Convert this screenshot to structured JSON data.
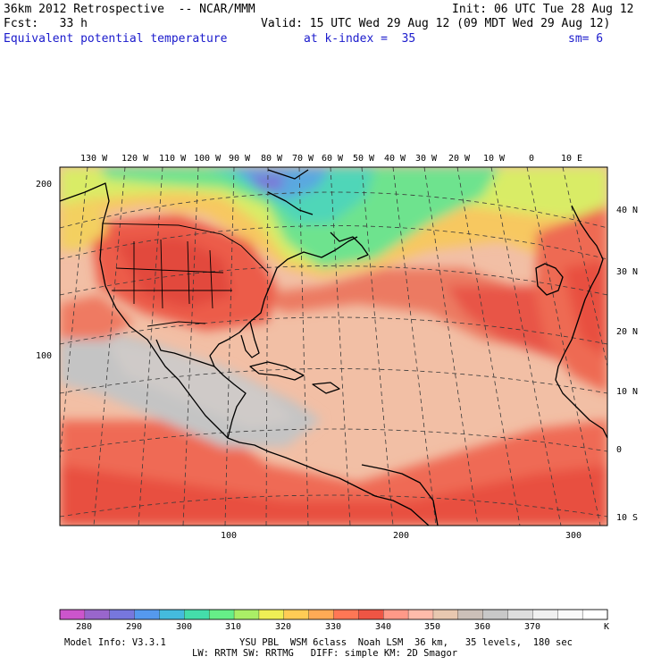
{
  "header": {
    "run": "36km 2012 Retrospective  -- NCAR/MMM",
    "init": "Init: 06 UTC Tue 28 Aug 12",
    "fcst": "Fcst:   33 h",
    "valid": "Valid: 15 UTC Wed 29 Aug 12 (09 MDT Wed 29 Aug 12)",
    "field": "Equivalent potential temperature",
    "kindex": "at k-index =  35",
    "sm": "sm= 6"
  },
  "colors": {
    "land_line": "#000000",
    "grid_line": "#444444",
    "scale": [
      "#cc55cc",
      "#9966cc",
      "#7777dd",
      "#5599ee",
      "#44bbdd",
      "#44ddaa",
      "#66ee88",
      "#aaee66",
      "#eeee55",
      "#ffcc55",
      "#ffaa55",
      "#ff7755",
      "#ee5544",
      "#ff9988",
      "#ffbbaa",
      "#e8c8b0",
      "#ccc0b8",
      "#c8c8c8",
      "#dedede",
      "#f0f0f0",
      "#fafafa",
      "#ffffff"
    ]
  },
  "map": {
    "top_lon_labels": [
      "130 W",
      "120 W",
      "110 W",
      "100 W",
      "90 W",
      "80 W",
      "70 W",
      "60 W",
      "50 W",
      "40 W",
      "30 W",
      "20 W",
      "10 W",
      "0",
      "10 E"
    ],
    "right_lat_labels": [
      "40 N",
      "30 N",
      "20 N",
      "10 N",
      "0",
      "10 S"
    ],
    "left_grid_labels": [
      "200",
      "100"
    ],
    "bottom_grid_labels": [
      "100",
      "200",
      "300"
    ]
  },
  "legend": {
    "ticks": [
      "280",
      "290",
      "300",
      "310",
      "320",
      "330",
      "340",
      "350",
      "360",
      "370"
    ],
    "unit": "K"
  },
  "footer": {
    "line1_left": "Model Info: V3.3.1",
    "line1_right": "YSU PBL  WSM 6class  Noah LSM  36 km,   35 levels,  180 sec",
    "line2": "LW: RRTM SW: RRTMG   DIFF: simple KM: 2D Smagor"
  }
}
